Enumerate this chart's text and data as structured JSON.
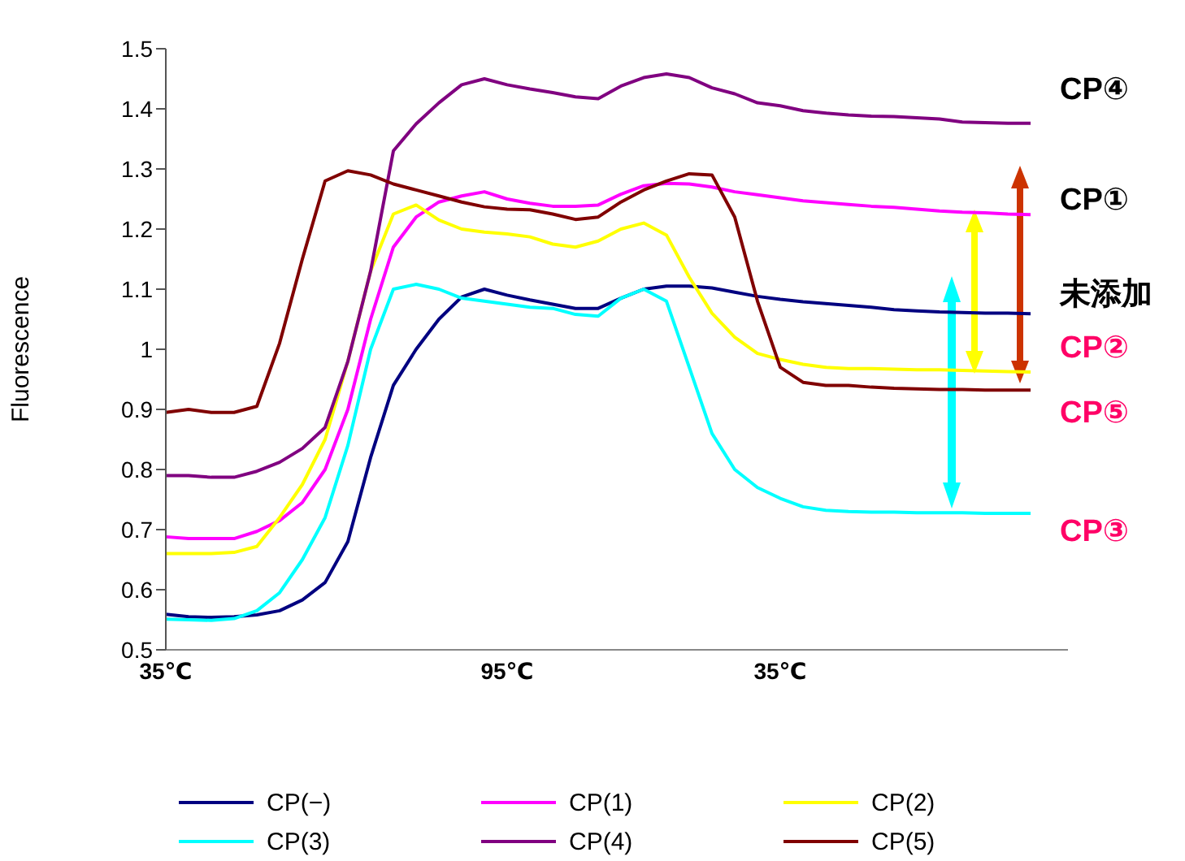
{
  "chart_data": {
    "type": "line",
    "ylabel": "Fluorescence",
    "categories": [
      "35℃",
      null,
      null,
      null,
      null,
      null,
      null,
      null,
      null,
      null,
      null,
      null,
      null,
      null,
      null,
      "95℃",
      null,
      null,
      null,
      null,
      null,
      null,
      null,
      null,
      null,
      null,
      null,
      "35℃",
      null,
      null,
      null,
      null,
      null,
      null,
      null,
      null,
      null,
      null,
      null
    ],
    "series": [
      {
        "name": "CP(−)",
        "color": "#000080",
        "values": [
          0.559,
          0.555,
          0.554,
          0.555,
          0.558,
          0.565,
          0.583,
          0.612,
          0.68,
          0.82,
          0.94,
          1.0,
          1.05,
          1.087,
          1.1,
          1.09,
          1.082,
          1.075,
          1.068,
          1.068,
          1.085,
          1.1,
          1.105,
          1.105,
          1.102,
          1.095,
          1.088,
          1.083,
          1.079,
          1.076,
          1.073,
          1.07,
          1.066,
          1.064,
          1.062,
          1.061,
          1.06,
          1.06,
          1.059
        ]
      },
      {
        "name": "CP(1)",
        "color": "#ff00ff",
        "values": [
          0.688,
          0.685,
          0.685,
          0.685,
          0.697,
          0.715,
          0.745,
          0.8,
          0.9,
          1.05,
          1.17,
          1.22,
          1.245,
          1.255,
          1.262,
          1.25,
          1.243,
          1.238,
          1.238,
          1.24,
          1.258,
          1.272,
          1.276,
          1.275,
          1.27,
          1.262,
          1.257,
          1.252,
          1.247,
          1.244,
          1.241,
          1.238,
          1.236,
          1.233,
          1.23,
          1.228,
          1.227,
          1.225,
          1.224
        ]
      },
      {
        "name": "CP(2)",
        "color": "#ffff00",
        "values": [
          0.66,
          0.66,
          0.66,
          0.662,
          0.672,
          0.72,
          0.775,
          0.85,
          0.98,
          1.13,
          1.225,
          1.24,
          1.215,
          1.2,
          1.195,
          1.192,
          1.187,
          1.175,
          1.17,
          1.18,
          1.2,
          1.21,
          1.19,
          1.12,
          1.06,
          1.02,
          0.993,
          0.983,
          0.975,
          0.97,
          0.968,
          0.968,
          0.967,
          0.966,
          0.966,
          0.965,
          0.964,
          0.963,
          0.962
        ]
      },
      {
        "name": "CP(3)",
        "color": "#00ffff",
        "values": [
          0.551,
          0.55,
          0.549,
          0.552,
          0.565,
          0.595,
          0.65,
          0.72,
          0.84,
          1.0,
          1.1,
          1.108,
          1.1,
          1.085,
          1.08,
          1.075,
          1.07,
          1.068,
          1.058,
          1.055,
          1.085,
          1.1,
          1.08,
          0.97,
          0.86,
          0.8,
          0.77,
          0.752,
          0.738,
          0.732,
          0.73,
          0.729,
          0.729,
          0.728,
          0.728,
          0.728,
          0.727,
          0.727,
          0.727
        ]
      },
      {
        "name": "CP(4)",
        "color": "#800080",
        "values": [
          0.79,
          0.79,
          0.787,
          0.787,
          0.797,
          0.812,
          0.835,
          0.87,
          0.98,
          1.13,
          1.33,
          1.375,
          1.41,
          1.44,
          1.45,
          1.44,
          1.433,
          1.427,
          1.42,
          1.417,
          1.438,
          1.452,
          1.458,
          1.452,
          1.435,
          1.425,
          1.41,
          1.405,
          1.397,
          1.393,
          1.39,
          1.388,
          1.387,
          1.385,
          1.383,
          1.378,
          1.377,
          1.376,
          1.376
        ]
      },
      {
        "name": "CP(5)",
        "color": "#800000",
        "values": [
          0.895,
          0.9,
          0.895,
          0.895,
          0.905,
          1.01,
          1.15,
          1.28,
          1.297,
          1.29,
          1.275,
          1.265,
          1.255,
          1.245,
          1.237,
          1.233,
          1.232,
          1.225,
          1.216,
          1.22,
          1.245,
          1.265,
          1.28,
          1.292,
          1.29,
          1.22,
          1.08,
          0.97,
          0.945,
          0.94,
          0.94,
          0.937,
          0.935,
          0.934,
          0.933,
          0.933,
          0.932,
          0.932,
          0.932
        ]
      }
    ],
    "annotations": [
      "CP④",
      "CP①",
      "未添加",
      "CP②",
      "CP⑤",
      "CP③"
    ],
    "ylim": [
      0.5,
      1.5
    ],
    "yticks": [
      0.5,
      0.6,
      0.7,
      0.8,
      0.9,
      1,
      1.1,
      1.2,
      1.3,
      1.4,
      1.5
    ],
    "grid": false,
    "legend": "bottom",
    "marker": "none",
    "line_style": "solid"
  }
}
